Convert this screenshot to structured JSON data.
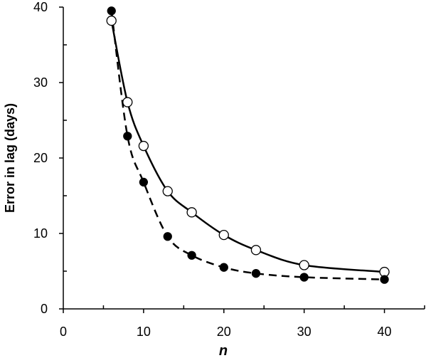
{
  "chart_data": {
    "type": "scatter",
    "title": "",
    "xlabel": "n",
    "ylabel": "Error in lag  (days)",
    "xlim": [
      0,
      45
    ],
    "ylim": [
      0,
      40
    ],
    "x_ticks": [
      0,
      10,
      20,
      30,
      40
    ],
    "y_ticks": [
      0,
      10,
      20,
      30,
      40
    ],
    "x_tick_labels": [
      "0",
      "10",
      "20",
      "30",
      "40"
    ],
    "y_tick_labels": [
      "0",
      "10",
      "20",
      "30",
      "40"
    ],
    "grid": false,
    "legend": "none",
    "series": [
      {
        "marker": "open-circle",
        "line": "solid",
        "x": [
          6,
          8,
          10,
          13,
          16,
          20,
          24,
          30,
          40
        ],
        "y": [
          38.2,
          27.4,
          21.6,
          15.6,
          12.8,
          9.8,
          7.8,
          5.8,
          4.9
        ]
      },
      {
        "marker": "filled-circle",
        "line": "dashed",
        "x": [
          6,
          8,
          10,
          13,
          16,
          20,
          24,
          30,
          40
        ],
        "y": [
          39.5,
          22.9,
          16.8,
          9.6,
          7.1,
          5.5,
          4.7,
          4.2,
          3.9
        ]
      }
    ]
  }
}
